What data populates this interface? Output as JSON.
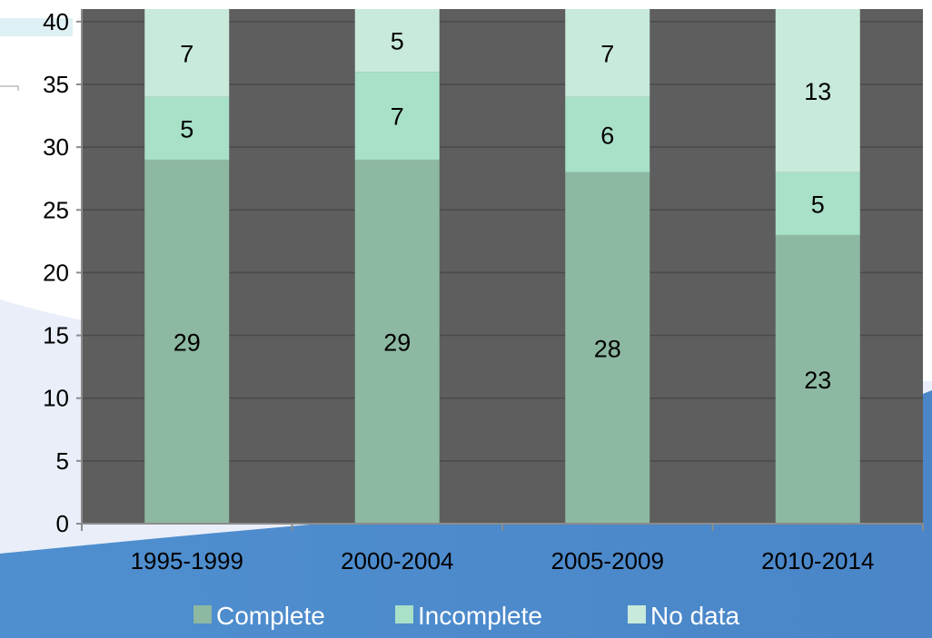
{
  "chart_data": {
    "type": "bar",
    "stacked": true,
    "categories": [
      "1995-1999",
      "2000-2004",
      "2005-2009",
      "2010-2014"
    ],
    "series": [
      {
        "name": "Complete",
        "values": [
          29,
          29,
          28,
          23
        ],
        "color": "#8db8a2"
      },
      {
        "name": "Incomplete",
        "values": [
          5,
          7,
          6,
          5
        ],
        "color": "#a8e0c8"
      },
      {
        "name": "No data",
        "values": [
          7,
          5,
          7,
          13
        ],
        "color": "#c8eadb"
      }
    ],
    "y_ticks": [
      "0",
      "5",
      "10",
      "15",
      "20",
      "25",
      "30",
      "35",
      "40"
    ],
    "ylim": [
      0,
      41
    ],
    "grid": true,
    "legend_position": "bottom",
    "plot_background": "#5e5e5e",
    "gridline_color": "#4a4a4a"
  }
}
